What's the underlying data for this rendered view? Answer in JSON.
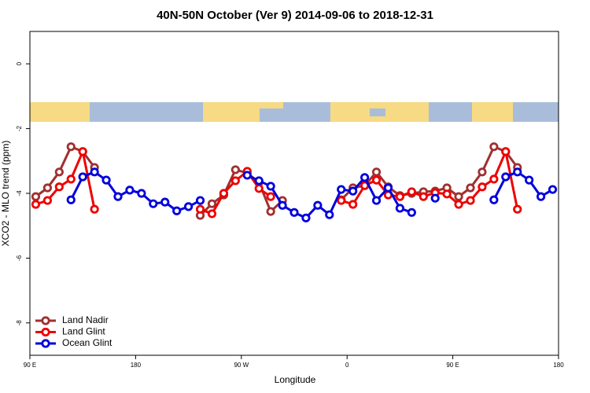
{
  "chart_data": {
    "type": "line",
    "title": "40N-50N October (Ver 9)   2014-09-06 to 2018-12-31",
    "xlabel": "Longitude",
    "ylabel": "XCO2 - MLO trend (ppm)",
    "x": [
      95,
      105,
      115,
      125,
      135,
      145,
      155,
      165,
      175,
      185,
      195,
      205,
      215,
      225,
      235,
      245,
      255,
      265,
      275,
      285,
      295,
      305,
      315,
      325,
      335,
      345,
      355,
      365,
      375,
      385,
      395,
      405,
      415,
      425,
      435,
      445,
      455,
      465,
      475,
      485,
      495,
      505,
      515,
      525,
      535
    ],
    "xlim": [
      90,
      540
    ],
    "xticks": [
      {
        "value": 90,
        "label": "90 E"
      },
      {
        "value": 180,
        "label": "180"
      },
      {
        "value": 270,
        "label": "90 W"
      },
      {
        "value": 360,
        "label": "0"
      },
      {
        "value": 450,
        "label": "90 E"
      },
      {
        "value": 540,
        "label": "180"
      }
    ],
    "ylim": [
      -9,
      1
    ],
    "yticks": [
      -8,
      -6,
      -4,
      -2,
      0
    ],
    "legend": "bottomleft",
    "series": [
      {
        "name": "Land Nadir",
        "color": "#a03030",
        "values": [
          -4.1,
          -3.83,
          -3.34,
          -2.56,
          -2.71,
          -3.2,
          null,
          null,
          null,
          null,
          null,
          null,
          null,
          null,
          -4.68,
          -4.32,
          -4.05,
          -3.27,
          -3.37,
          -3.66,
          -4.56,
          -4.22,
          null,
          null,
          null,
          null,
          -4.2,
          -3.83,
          -3.76,
          -3.34,
          -3.8,
          -4.07,
          -4.0,
          -3.95,
          -3.93,
          -3.83,
          -4.1,
          -3.83,
          -3.34,
          -2.56,
          -2.71,
          -3.2,
          null,
          null,
          null
        ]
      },
      {
        "name": "Land Glint",
        "color": "#ee0000",
        "values": [
          -4.34,
          -4.22,
          -3.8,
          -3.56,
          -2.71,
          -4.49,
          null,
          null,
          null,
          null,
          null,
          null,
          null,
          null,
          -4.49,
          -4.63,
          -4.0,
          -3.61,
          -3.32,
          -3.85,
          -4.1,
          null,
          null,
          null,
          null,
          null,
          -4.22,
          -4.34,
          -3.76,
          -3.59,
          -4.05,
          -4.1,
          -3.95,
          -4.1,
          -3.98,
          -4.02,
          -4.34,
          -4.22,
          -3.8,
          -3.56,
          -2.71,
          -4.49,
          null,
          null,
          null
        ]
      },
      {
        "name": "Ocean Glint",
        "color": "#0000dd",
        "values": [
          null,
          null,
          null,
          -4.2,
          -3.49,
          -3.34,
          -3.59,
          -4.1,
          -3.9,
          -4.0,
          -4.32,
          -4.27,
          -4.54,
          -4.41,
          -4.22,
          null,
          null,
          null,
          -3.44,
          -3.61,
          -3.78,
          -4.37,
          -4.59,
          -4.76,
          -4.37,
          -4.66,
          -3.88,
          -3.93,
          -3.51,
          -4.22,
          -3.83,
          -4.46,
          -4.59,
          null,
          -4.15,
          null,
          null,
          null,
          null,
          -4.2,
          -3.49,
          -3.34,
          -3.59,
          -4.1,
          -3.88
        ]
      }
    ]
  }
}
